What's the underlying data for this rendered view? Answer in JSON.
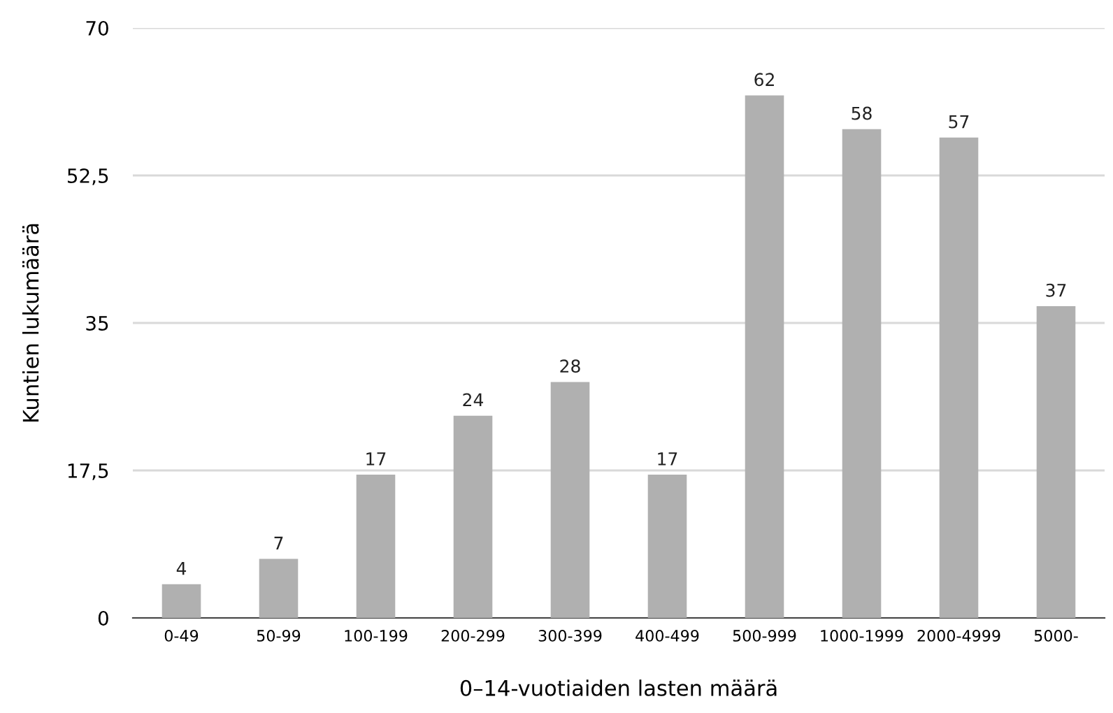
{
  "chart_data": {
    "type": "bar",
    "xlabel": "0–14-vuotiaiden lasten määrä",
    "ylabel": "Kuntien lukumäärä",
    "categories": [
      "0-49",
      "50-99",
      "100-199",
      "200-299",
      "300-399",
      "400-499",
      "500-999",
      "1000-1999",
      "2000-4999",
      "5000-"
    ],
    "values": [
      4,
      7,
      17,
      24,
      28,
      17,
      62,
      58,
      57,
      37
    ],
    "color": "#b0b0b0",
    "ylim": [
      0,
      70
    ],
    "yticks": [
      0,
      {
        "value": 17.5,
        "label": "17,5"
      },
      35,
      {
        "value": 52.5,
        "label": "52,5"
      },
      70
    ],
    "grid": "y",
    "data_labels": true,
    "legend": false
  }
}
